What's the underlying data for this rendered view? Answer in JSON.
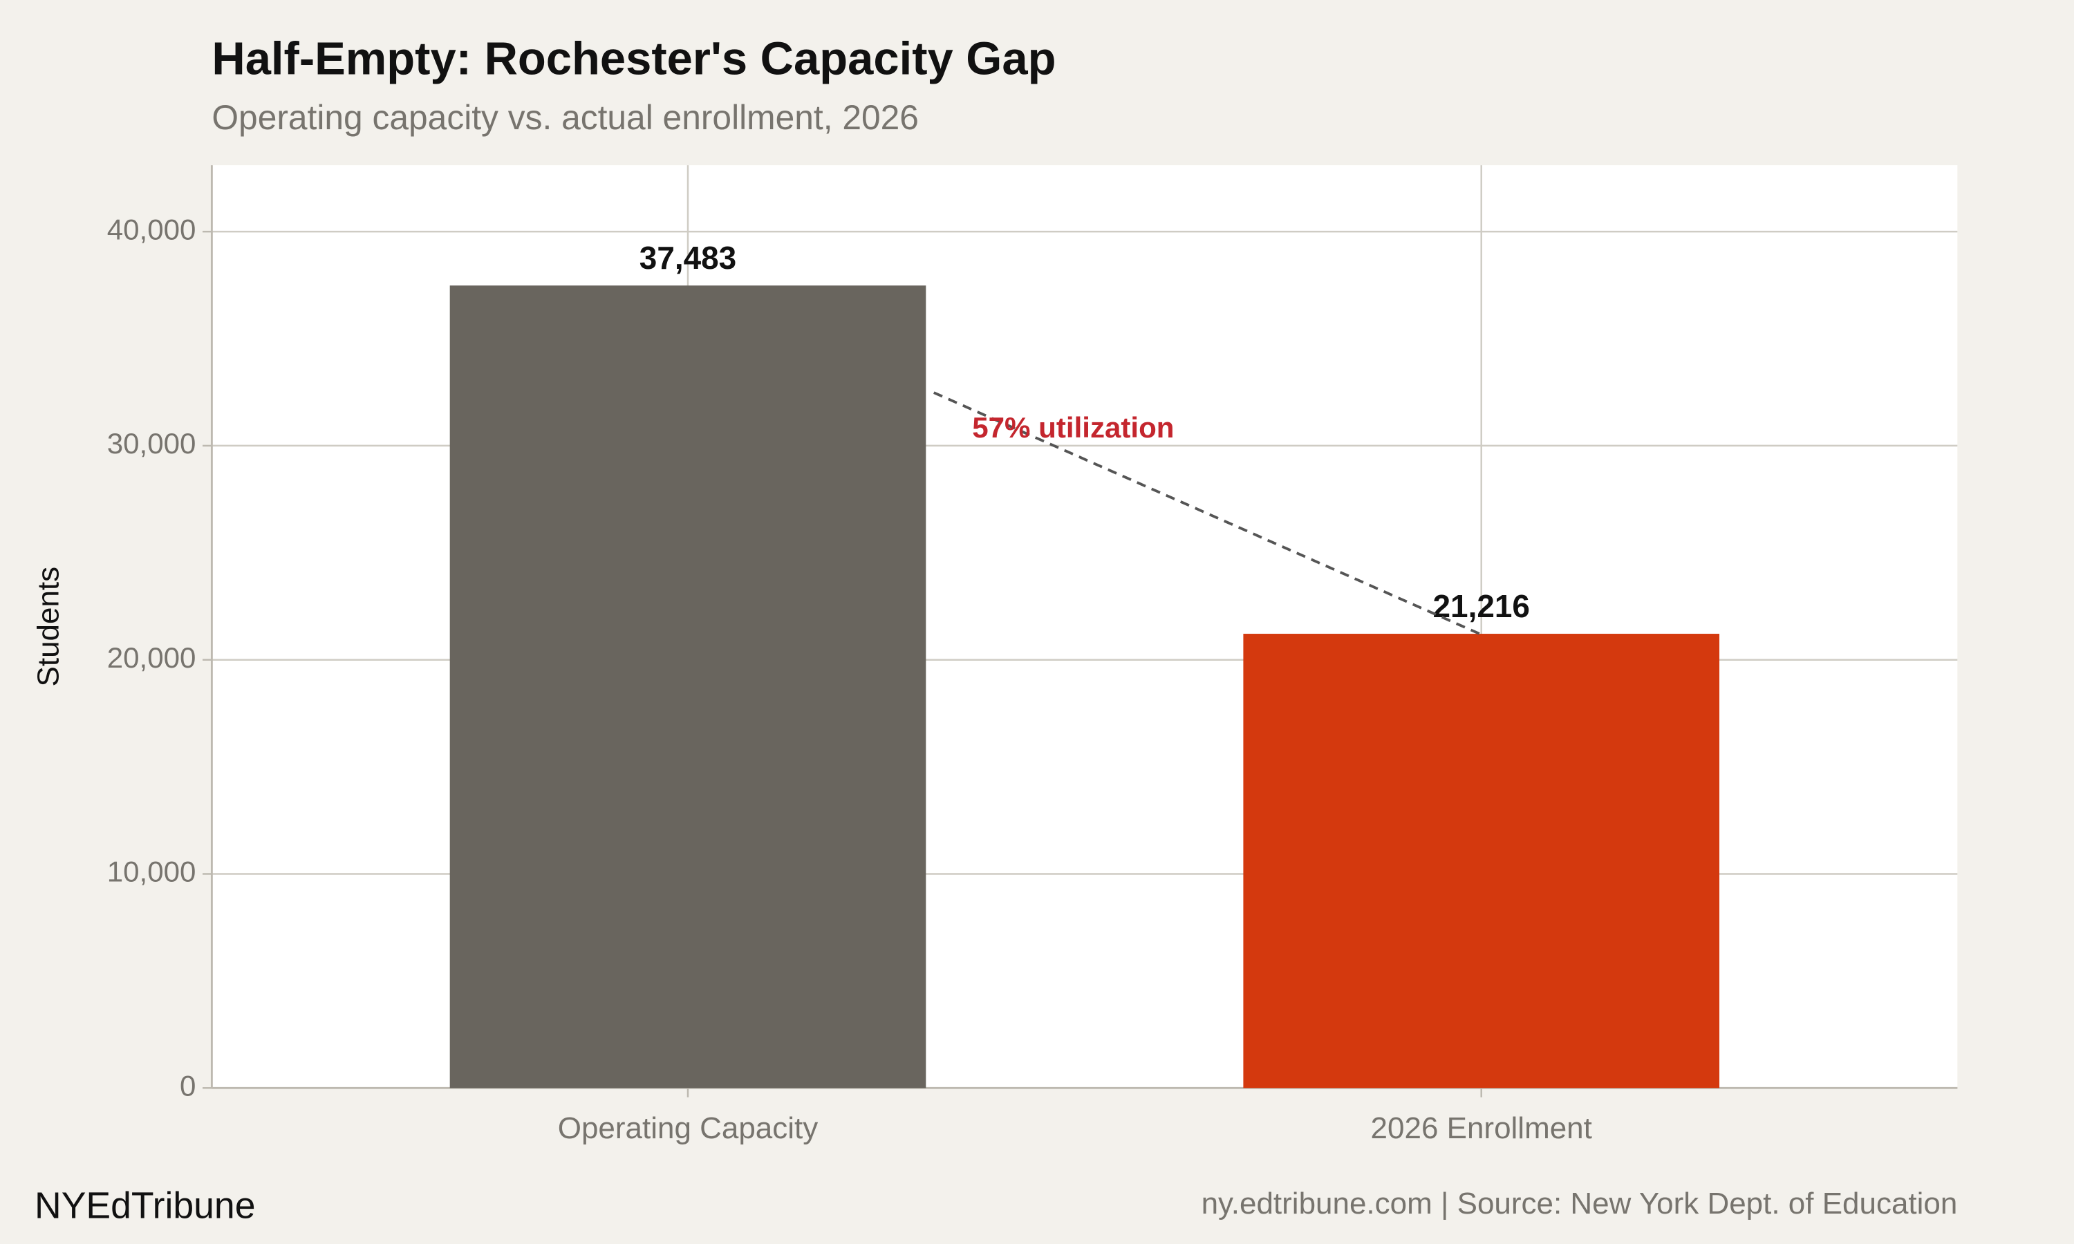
{
  "chart_data": {
    "type": "bar",
    "title": "Half-Empty: Rochester's Capacity Gap",
    "subtitle": "Operating capacity vs. actual enrollment, 2026",
    "y_label": "Students",
    "categories": [
      "Operating Capacity",
      "2026 Enrollment"
    ],
    "values": [
      37483,
      21216
    ],
    "value_labels": [
      "37,483",
      "21,216"
    ],
    "colors": [
      "#69655e",
      "#d4390e"
    ],
    "ylim": [
      0,
      43100
    ],
    "yticks": [
      0,
      {
        "value": 10000,
        "label": "10,000"
      },
      {
        "value": 20000,
        "label": "20,000"
      },
      {
        "value": 30000,
        "label": "30,000"
      },
      {
        "value": 40000,
        "label": "40,000"
      }
    ],
    "grid": true,
    "annotation": "57% utilization",
    "brand": "NYEdTribune",
    "source": "ny.edtribune.com | Source: New York Dept. of Education"
  }
}
